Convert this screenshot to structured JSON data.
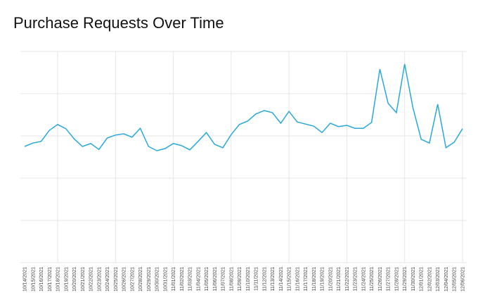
{
  "chart_data": {
    "type": "line",
    "title": "Purchase Requests Over Time",
    "categories": [
      "10/14/2021",
      "10/15/2021",
      "10/16/2021",
      "10/17/2021",
      "10/18/2021",
      "10/19/2021",
      "10/20/2021",
      "10/21/2021",
      "10/22/2021",
      "10/23/2021",
      "10/24/2021",
      "10/25/2021",
      "10/26/2021",
      "10/27/2021",
      "10/28/2021",
      "10/29/2021",
      "10/30/2021",
      "10/31/2021",
      "11/01/2021",
      "11/02/2021",
      "11/03/2021",
      "11/04/2021",
      "11/05/2021",
      "11/06/2021",
      "11/07/2021",
      "11/08/2021",
      "11/09/2021",
      "11/10/2021",
      "11/11/2021",
      "11/12/2021",
      "11/13/2021",
      "11/14/2021",
      "11/15/2021",
      "11/16/2021",
      "11/17/2021",
      "11/18/2021",
      "11/19/2021",
      "11/20/2021",
      "11/21/2021",
      "11/22/2021",
      "11/23/2021",
      "11/24/2021",
      "11/25/2021",
      "11/26/2021",
      "11/27/2021",
      "11/28/2021",
      "11/29/2021",
      "11/30/2021",
      "12/01/2021",
      "12/02/2021",
      "12/03/2021",
      "12/04/2021",
      "12/05/2021",
      "12/06/2021"
    ],
    "values": [
      2.75,
      2.83,
      2.87,
      3.13,
      3.27,
      3.17,
      2.93,
      2.75,
      2.82,
      2.68,
      2.95,
      3.02,
      3.05,
      2.97,
      3.18,
      2.75,
      2.65,
      2.7,
      2.82,
      2.77,
      2.67,
      2.87,
      3.08,
      2.8,
      2.72,
      3.03,
      3.27,
      3.35,
      3.52,
      3.6,
      3.55,
      3.3,
      3.58,
      3.33,
      3.28,
      3.23,
      3.08,
      3.3,
      3.22,
      3.25,
      3.18,
      3.18,
      3.32,
      4.58,
      3.77,
      3.55,
      4.7,
      3.67,
      2.92,
      2.83,
      3.75,
      2.72,
      2.85,
      3.17
    ],
    "color": "#29a8dc",
    "ylim": [
      0,
      5
    ],
    "ygrid": [
      0,
      1,
      2,
      3,
      4,
      5
    ]
  }
}
